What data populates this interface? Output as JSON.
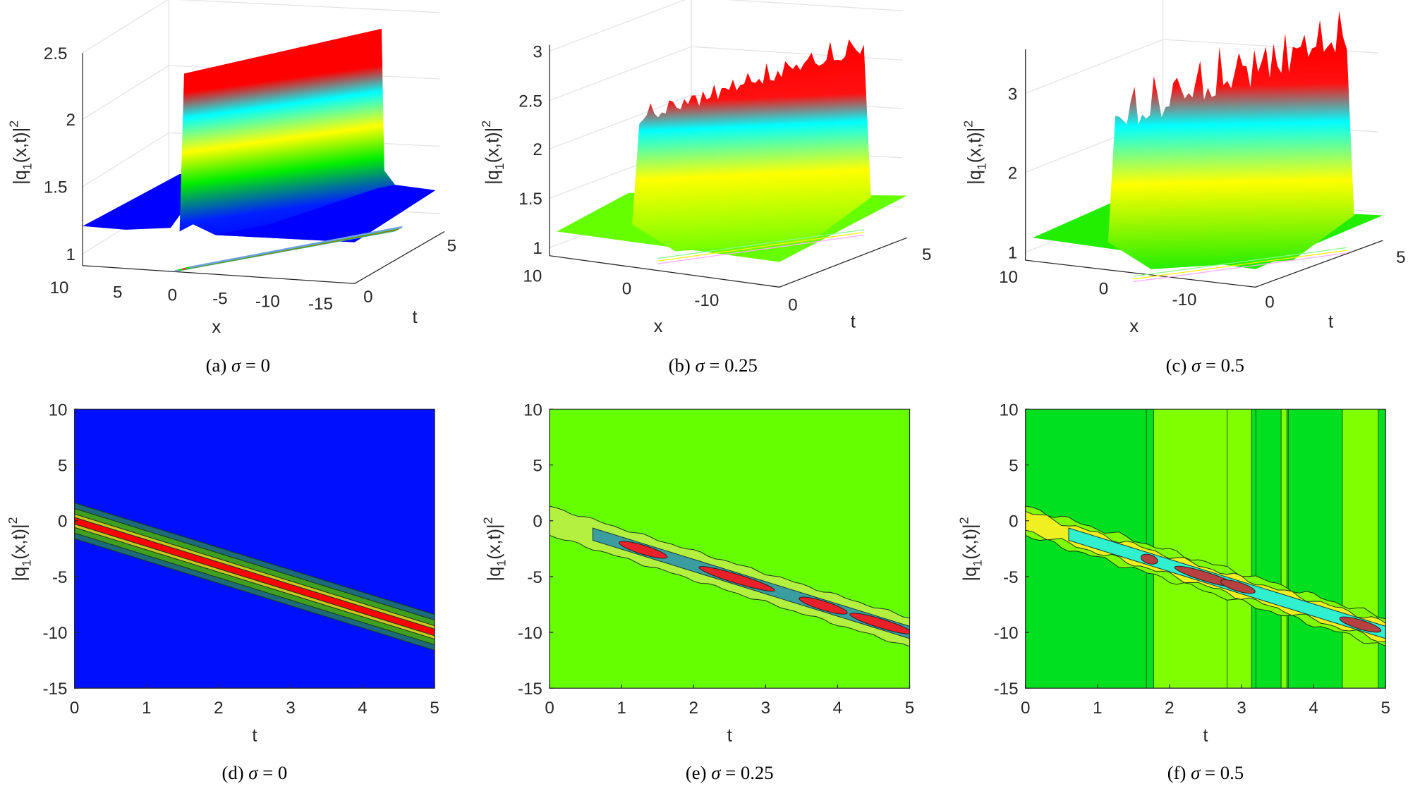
{
  "chart_data": [
    {
      "type": "surface",
      "panel": "a",
      "caption": {
        "tag": "(a)",
        "sym": "σ",
        "rest": " = 0"
      },
      "zlabel": {
        "base": "|q",
        "sub": "1",
        "mid": "(x,t)|",
        "sup": "2"
      },
      "xlabel": "x",
      "tlabel": "t",
      "zticks": [
        "2.5",
        "2",
        "1.5",
        "1"
      ],
      "xticks": [
        "10",
        "5",
        "0",
        "-5",
        "-10",
        "-15"
      ],
      "tticks": [
        "0",
        "5"
      ],
      "zlim": [
        1,
        2.6
      ],
      "background": 1.2,
      "peak": 2.6,
      "sigma": 0
    },
    {
      "type": "surface",
      "panel": "b",
      "caption": {
        "tag": "(b)",
        "sym": "σ",
        "rest": " = 0.25"
      },
      "zlabel": {
        "base": "|q",
        "sub": "1",
        "mid": "(x,t)|",
        "sup": "2"
      },
      "xlabel": "x",
      "tlabel": "t",
      "zticks": [
        "3",
        "2.5",
        "2",
        "1.5",
        "1"
      ],
      "xticks": [
        "10",
        "0",
        "-10"
      ],
      "tticks": [
        "0",
        "5"
      ],
      "zlim": [
        1,
        3
      ],
      "background": 1.3,
      "peak": 2.95,
      "sigma": 0.25
    },
    {
      "type": "surface",
      "panel": "c",
      "caption": {
        "tag": "(c)",
        "sym": "σ",
        "rest": " = 0.5"
      },
      "zlabel": {
        "base": "|q",
        "sub": "1",
        "mid": "(x,t)|",
        "sup": "2"
      },
      "xlabel": "x",
      "tlabel": "t",
      "zticks": [
        "3",
        "2",
        "1"
      ],
      "xticks": [
        "10",
        "0",
        "-10"
      ],
      "tticks": [
        "0",
        "5"
      ],
      "zlim": [
        1,
        3.5
      ],
      "background": 1.3,
      "peak": 3.5,
      "sigma": 0.5
    },
    {
      "type": "heatmap",
      "subtype": "contour",
      "panel": "d",
      "caption": {
        "tag": "(d)",
        "sym": "σ",
        "rest": " = 0"
      },
      "ylabel": {
        "base": "|q",
        "sub": "1",
        "mid": "(x,t)|",
        "sup": "2"
      },
      "xlabel": "t",
      "xticks": [
        "0",
        "1",
        "2",
        "3",
        "4",
        "5"
      ],
      "yticks": [
        "10",
        "5",
        "0",
        "-5",
        "-10",
        "-15"
      ],
      "xlim": [
        0,
        5
      ],
      "ylim": [
        -15,
        10
      ],
      "ridge": {
        "t": [
          0,
          5
        ],
        "x": [
          0,
          -10
        ]
      },
      "sigma": 0,
      "colors": {
        "background": "#0010ff",
        "outer": "#1d6a7a",
        "mid": "#3fa020",
        "inner": "#c8c820",
        "core": "#ff0000"
      }
    },
    {
      "type": "heatmap",
      "subtype": "contour",
      "panel": "e",
      "caption": {
        "tag": "(e)",
        "sym": "σ",
        "rest": " = 0.25"
      },
      "ylabel": {
        "base": "|q",
        "sub": "1",
        "mid": "(x,t)|",
        "sup": "2"
      },
      "xlabel": "t",
      "xticks": [
        "0",
        "1",
        "2",
        "3",
        "4",
        "5"
      ],
      "yticks": [
        "10",
        "5",
        "0",
        "-5",
        "-10",
        "-15"
      ],
      "xlim": [
        0,
        5
      ],
      "ylim": [
        -15,
        10
      ],
      "ridge": {
        "t": [
          0,
          5
        ],
        "x": [
          0,
          -10
        ]
      },
      "sigma": 0.25,
      "colors": {
        "background": "#66ff00",
        "outer": "#b4f040",
        "mid": "#3a9ea0",
        "core": "#e8202a"
      }
    },
    {
      "type": "heatmap",
      "subtype": "contour",
      "panel": "f",
      "caption": {
        "tag": "(f)",
        "sym": "σ",
        "rest": " = 0.5"
      },
      "ylabel": {
        "base": "|q",
        "sub": "1",
        "mid": "(x,t)|",
        "sup": "2"
      },
      "xlabel": "t",
      "xticks": [
        "0",
        "1",
        "2",
        "3",
        "4",
        "5"
      ],
      "yticks": [
        "10",
        "5",
        "0",
        "-5",
        "-10",
        "-15"
      ],
      "xlim": [
        0,
        5
      ],
      "ylim": [
        -15,
        10
      ],
      "ridge": {
        "t": [
          0,
          5
        ],
        "x": [
          0,
          -10
        ]
      },
      "sigma": 0.5,
      "colors": {
        "background": "#00e020",
        "stripe": "#80ff00",
        "outer": "#80ff00",
        "mid": "#f0f020",
        "inner": "#30f0d0",
        "core": "#b84040"
      }
    }
  ]
}
